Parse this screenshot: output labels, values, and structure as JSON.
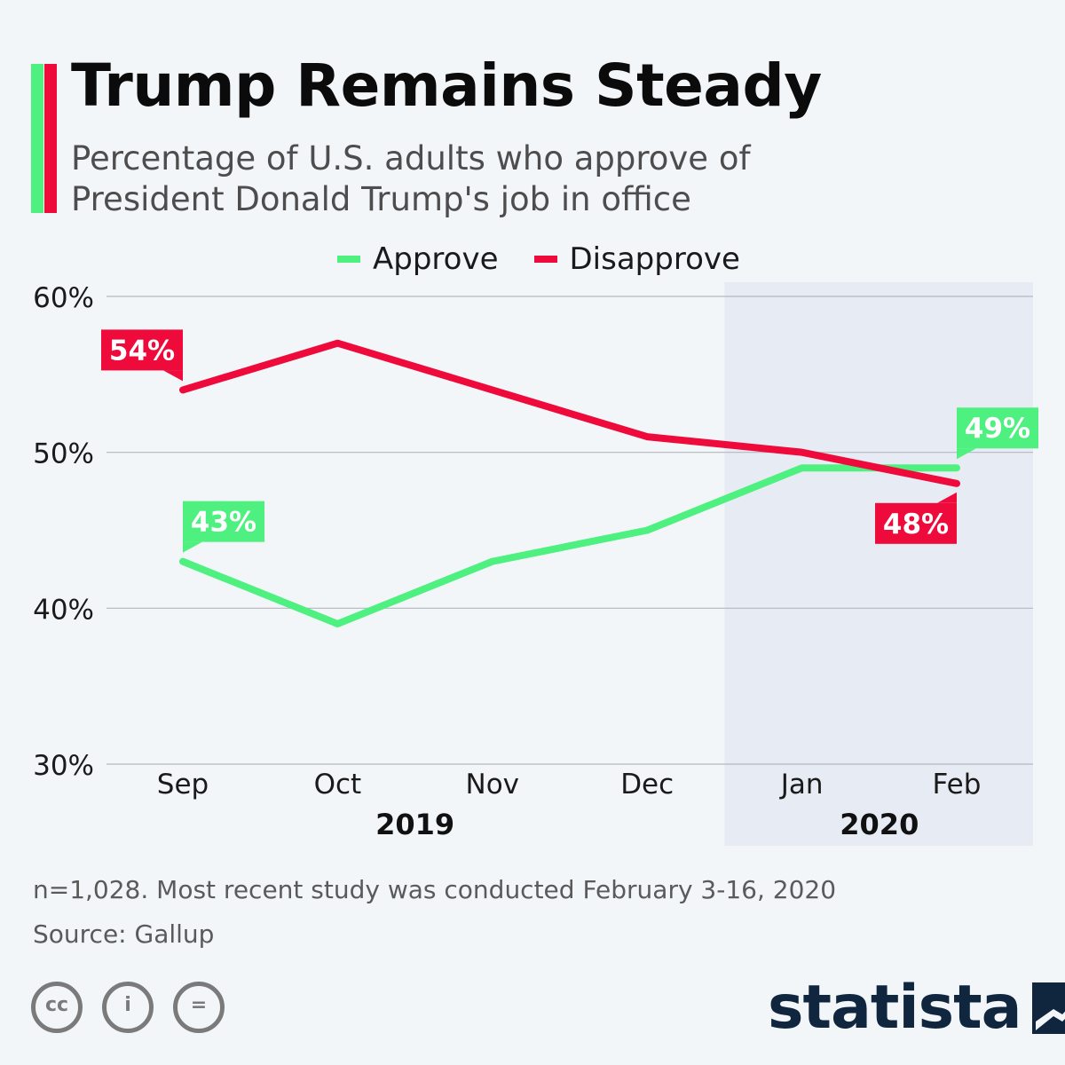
{
  "header": {
    "title": "Trump Remains Steady",
    "subtitle": "Percentage of U.S. adults who approve of President Donald Trump's job in office"
  },
  "colors": {
    "approve": "#4ef07f",
    "disapprove": "#ee0a3a",
    "shade": "#e7ecf4",
    "brand": "#10263f"
  },
  "legend": {
    "approve_label": "Approve",
    "disapprove_label": "Disapprove"
  },
  "chart_data": {
    "type": "line",
    "categories": [
      "Sep",
      "Oct",
      "Nov",
      "Dec",
      "Jan",
      "Feb"
    ],
    "year_labels": [
      {
        "label": "2019",
        "from": 0,
        "to": 3
      },
      {
        "label": "2020",
        "from": 4,
        "to": 5
      }
    ],
    "shaded_from_index": 4,
    "ylim": [
      30,
      60
    ],
    "yticks": [
      30,
      40,
      50,
      60
    ],
    "ytick_labels": [
      "30%",
      "40%",
      "50%",
      "60%"
    ],
    "grid": true,
    "legend_position": "top",
    "series": [
      {
        "name": "Approve",
        "color": "#4ef07f",
        "values": [
          43,
          39,
          43,
          45,
          49,
          49
        ]
      },
      {
        "name": "Disapprove",
        "color": "#ee0a3a",
        "values": [
          54,
          57,
          54,
          51,
          50,
          48
        ]
      }
    ],
    "callouts": [
      {
        "series": 1,
        "index": 0,
        "label": "54%",
        "placement": "above-left"
      },
      {
        "series": 0,
        "index": 0,
        "label": "43%",
        "placement": "above-right"
      },
      {
        "series": 0,
        "index": 5,
        "label": "49%",
        "placement": "above-right"
      },
      {
        "series": 1,
        "index": 5,
        "label": "48%",
        "placement": "below-left"
      }
    ]
  },
  "footer": {
    "note": "n=1,028. Most recent study was conducted February 3-16, 2020",
    "source": "Source: Gallup",
    "cc_labels": [
      "cc",
      "i",
      "="
    ],
    "brand": "statista"
  }
}
